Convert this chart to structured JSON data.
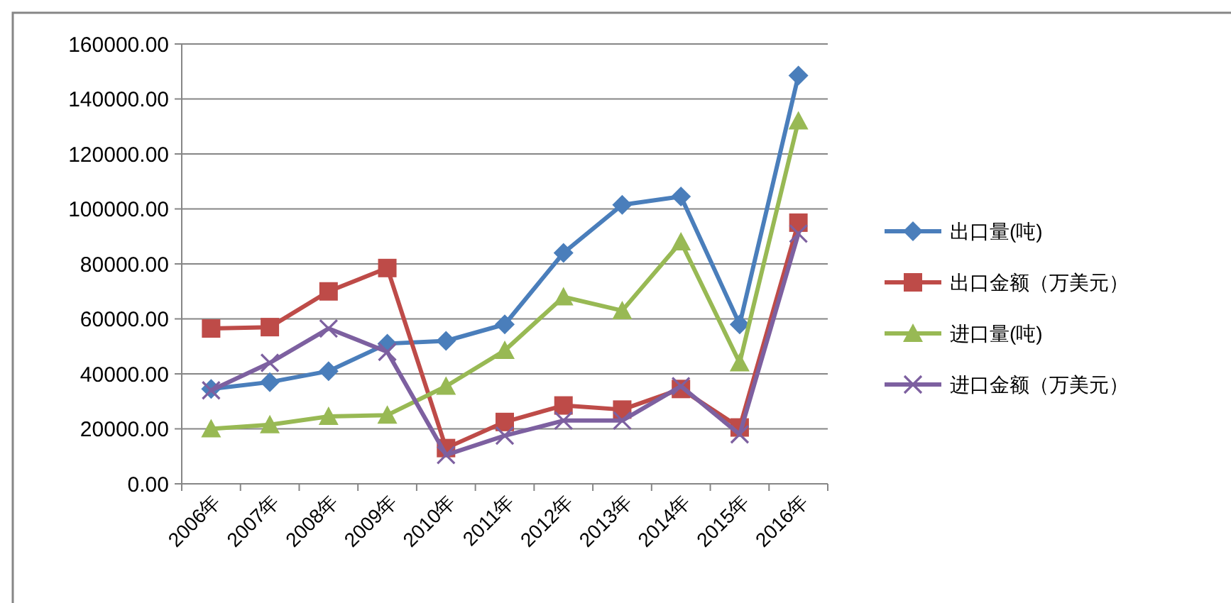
{
  "chart_data": {
    "type": "line",
    "categories": [
      "2006年",
      "2007年",
      "2008年",
      "2009年",
      "2010年",
      "2011年",
      "2012年",
      "2013年",
      "2014年",
      "2015年",
      "2016年"
    ],
    "series": [
      {
        "name": "出口量(吨)",
        "color": "#4a7ebb",
        "marker": "diamond",
        "values": [
          34500,
          37000,
          41000,
          51000,
          52000,
          58000,
          84000,
          101500,
          104500,
          58000,
          148500
        ]
      },
      {
        "name": "出口金额（万美元）",
        "color": "#be4b48",
        "marker": "square",
        "values": [
          56500,
          57000,
          70000,
          78500,
          13000,
          22500,
          28500,
          27000,
          34500,
          20500,
          95000
        ]
      },
      {
        "name": "进口量(吨)",
        "color": "#98b954",
        "marker": "triangle",
        "values": [
          20000,
          21500,
          24500,
          25000,
          35500,
          48500,
          68000,
          63000,
          88000,
          44000,
          132000
        ]
      },
      {
        "name": "进口金额（万美元）",
        "color": "#7d60a0",
        "marker": "cross",
        "values": [
          34000,
          44000,
          56500,
          48000,
          10500,
          17500,
          23000,
          23000,
          35500,
          18000,
          91000
        ]
      }
    ],
    "ylim": [
      0,
      160000
    ],
    "yticks": [
      {
        "value": 0,
        "label": "0.00"
      },
      {
        "value": 20000,
        "label": "20000.00"
      },
      {
        "value": 40000,
        "label": "40000.00"
      },
      {
        "value": 60000,
        "label": "60000.00"
      },
      {
        "value": 80000,
        "label": "80000.00"
      },
      {
        "value": 100000,
        "label": "100000.00"
      },
      {
        "value": 120000,
        "label": "120000.00"
      },
      {
        "value": 140000,
        "label": "140000.00"
      },
      {
        "value": 160000,
        "label": "160000.00"
      }
    ],
    "grid": "y",
    "legend": "right",
    "line_style": "solid"
  }
}
